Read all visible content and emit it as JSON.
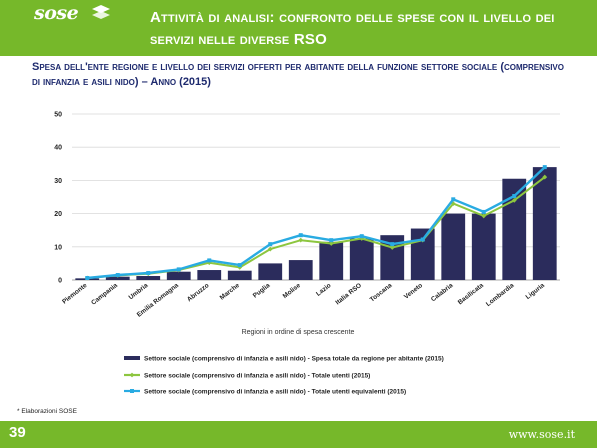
{
  "header": {
    "logo_text": "sose",
    "title": "Attività di analisi: confronto delle spese con il livello dei servizi nelle diverse RSO"
  },
  "chart_title": "Spesa dell'ente regione e livello dei servizi offerti per abitante della funzione settore sociale (comprensivo di infanzia e asili nido) – Anno (2015)",
  "footnote": "* Elaborazioni SOSE",
  "footer": {
    "page_number": "39",
    "site": "www.sose.it"
  },
  "colors": {
    "brand_green": "#76b82a",
    "bar": "#2b2c5c",
    "line_green": "#8dc63f",
    "line_blue": "#29abe2",
    "title_navy": "#1e2a6e"
  },
  "chart_data": {
    "type": "bar",
    "categories": [
      "Piemonte",
      "Campania",
      "Umbria",
      "Emilia Romagna",
      "Abruzzo",
      "Marche",
      "Puglia",
      "Molise",
      "Lazio",
      "Italia RSO",
      "Toscana",
      "Veneto",
      "Calabria",
      "Basilicata",
      "Lombardia",
      "Liguria"
    ],
    "series": [
      {
        "name": "Settore sociale (comprensivo di infanzia e asili nido) - Spesa totale da regione per abitante (2015)",
        "type": "bar",
        "values": [
          0.5,
          1,
          1.2,
          2.5,
          3,
          2.8,
          5,
          6,
          11.5,
          12.5,
          13.5,
          15.5,
          20,
          20,
          30.5,
          34
        ]
      },
      {
        "name": "Settore sociale (comprensivo di infanzia e asili nido) - Totale utenti (2015)",
        "type": "line",
        "values": [
          0.6,
          1.4,
          1.9,
          3,
          5.2,
          3.8,
          9.3,
          12,
          11,
          12.5,
          9.8,
          12,
          23,
          19.3,
          24,
          31
        ]
      },
      {
        "name": "Settore sociale (comprensivo di infanzia e asili nido) - Totale utenti equivalenti (2015)",
        "type": "line",
        "values": [
          0.6,
          1.5,
          2.1,
          3.2,
          5.9,
          4.5,
          10.8,
          13.5,
          12,
          13.2,
          10.8,
          12.2,
          24.3,
          20.5,
          25.3,
          34
        ]
      }
    ],
    "xlabel": "Regioni in ordine di spesa crescente",
    "ylabel": "",
    "ylim": [
      0,
      50
    ],
    "yticks": [
      0,
      10,
      20,
      30,
      40,
      50
    ],
    "grid": true,
    "legend_position": "bottom"
  }
}
